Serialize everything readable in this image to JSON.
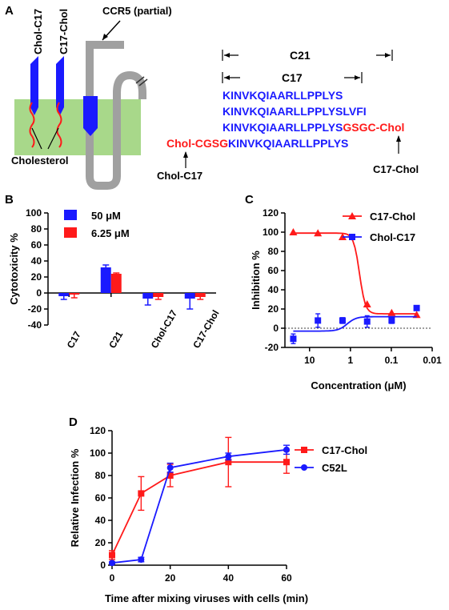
{
  "panels": {
    "a": {
      "label": "A",
      "ccr5_label": "CCR5 (partial)",
      "chol_c17_top": "Chol-C17",
      "c17_chol_top": "C17-Chol",
      "cholesterol": "Cholesterol",
      "c21_label": "C21",
      "c17_label": "C17",
      "seq_c17": "KINVKQIAARLLPPLYS",
      "seq_c21": "KINVKQIAARLLPPLYSLVFI",
      "seq_c17chol_main": "KINVKQIAARLLPPLYS",
      "seq_c17chol_tail": "GSGC-Chol",
      "seq_cholc17_head": "Chol-CGSG",
      "seq_cholc17_main": "KINVKQIAARLLPPLYS",
      "arrow_label_cholc17": "Chol-C17",
      "arrow_label_c17chol": "C17-Chol",
      "colors": {
        "peptide": "#1a1aff",
        "cholesterol": "#ff1a1a",
        "membrane": "#a8d88a",
        "receptor": "#a0a0a0"
      }
    },
    "b": {
      "label": "B"
    },
    "c": {
      "label": "C"
    },
    "d": {
      "label": "D"
    }
  },
  "chart_data": [
    {
      "panel": "B",
      "type": "bar",
      "ylabel": "Cytotoxicity %",
      "ylim": [
        -40,
        100
      ],
      "yticks": [
        -40,
        -20,
        0,
        20,
        40,
        60,
        80,
        100
      ],
      "categories": [
        "C17",
        "C21",
        "Chol-C17",
        "C17-Chol"
      ],
      "series": [
        {
          "name": "50 μM",
          "color": "#1a1aff",
          "values": [
            -4,
            32,
            -7,
            -7
          ],
          "errors": [
            4,
            3,
            8,
            13
          ]
        },
        {
          "name": "6.25 μM",
          "color": "#ff1a1a",
          "values": [
            -2,
            24,
            -5,
            -5
          ],
          "errors": [
            4,
            1,
            3,
            3
          ]
        }
      ],
      "legend": "top-left"
    },
    {
      "panel": "C",
      "type": "line",
      "xlabel": "Concentration (μM)",
      "ylabel": "Inhibition %",
      "xscale": "log-reversed",
      "xlim": [
        40,
        0.01
      ],
      "xticks": [
        10,
        1,
        0.1,
        0.01
      ],
      "ylim": [
        -20,
        120
      ],
      "yticks": [
        -20,
        0,
        20,
        40,
        60,
        80,
        100,
        120
      ],
      "series": [
        {
          "name": "C17-Chol",
          "color": "#ff1a1a",
          "marker": "triangle",
          "x": [
            25,
            6.25,
            1.56,
            0.39,
            0.098,
            0.024
          ],
          "y": [
            100,
            99,
            95,
            25,
            16,
            14
          ],
          "errors": [
            0,
            0,
            0,
            0,
            0,
            0
          ]
        },
        {
          "name": "Chol-C17",
          "color": "#1a1aff",
          "marker": "square",
          "x": [
            25,
            6.25,
            1.56,
            0.39,
            0.098,
            0.024
          ],
          "y": [
            -11,
            8,
            8,
            7,
            8,
            21
          ],
          "errors": [
            5,
            7,
            3,
            6,
            3,
            0
          ]
        }
      ],
      "legend": "top-right"
    },
    {
      "panel": "D",
      "type": "line",
      "xlabel": "Time after mixing viruses with cells (min)",
      "ylabel": "Relative Infection %",
      "xlim": [
        0,
        60
      ],
      "xticks": [
        0,
        20,
        40,
        60
      ],
      "ylim": [
        0,
        120
      ],
      "yticks": [
        0,
        20,
        40,
        60,
        80,
        100,
        120
      ],
      "series": [
        {
          "name": "C17-Chol",
          "color": "#ff1a1a",
          "marker": "square",
          "x": [
            0,
            10,
            20,
            40,
            60
          ],
          "y": [
            9,
            64,
            80,
            92,
            92
          ],
          "errors": [
            4,
            15,
            10,
            22,
            10
          ]
        },
        {
          "name": "C52L",
          "color": "#1a1aff",
          "marker": "circle",
          "x": [
            0,
            10,
            20,
            40,
            60
          ],
          "y": [
            2,
            5,
            87,
            97,
            103
          ],
          "errors": [
            1,
            2,
            4,
            3,
            4
          ]
        }
      ],
      "legend": "top-right"
    }
  ]
}
